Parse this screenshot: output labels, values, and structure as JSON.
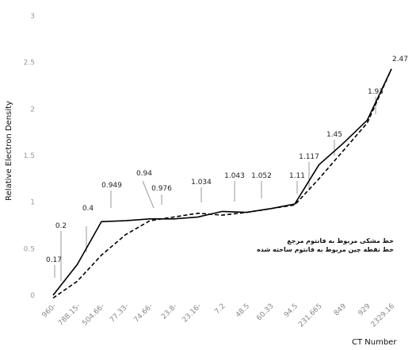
{
  "chart_data": {
    "type": "line",
    "ylabel": "Relative Electron Density",
    "xlabel": "CT Number",
    "ylim": [
      0,
      3
    ],
    "yticks": [
      "0",
      "0.5",
      "1",
      "1.5",
      "2",
      "2.5",
      "3"
    ],
    "categories": [
      "960-",
      "788.15-",
      "504.66-",
      "77.33-",
      "74.66-",
      "23.8-",
      "23.16-",
      "7.2",
      "48.5",
      "60.33",
      "94.5",
      "231.665",
      "849",
      "929",
      "2329.16"
    ],
    "grid": false,
    "legend_position": "bottom-right",
    "series": [
      {
        "name": "خط مشکی مربوط به فانتوم مرجع",
        "style": "solid",
        "color": "#000000",
        "values": [
          0.0,
          0.33,
          0.79,
          0.8,
          0.82,
          0.82,
          0.84,
          0.9,
          0.89,
          0.93,
          0.98,
          1.4,
          1.63,
          1.88,
          2.43
        ]
      },
      {
        "name": "خط نقطه چین مربوط به فانتوم ساخته شده",
        "style": "dashed",
        "color": "#000000",
        "values": [
          -0.03,
          0.15,
          0.43,
          0.65,
          0.8,
          0.84,
          0.88,
          0.86,
          0.89,
          0.93,
          0.97,
          1.25,
          1.55,
          1.85,
          2.43
        ]
      }
    ],
    "data_labels": [
      "0.17",
      "0.2",
      "0.4",
      "0.949",
      "0.94",
      "0.976",
      "1.034",
      "1.043",
      "1.052",
      "1.11",
      "1.117",
      "1.45",
      "1.93",
      "2.47"
    ]
  }
}
